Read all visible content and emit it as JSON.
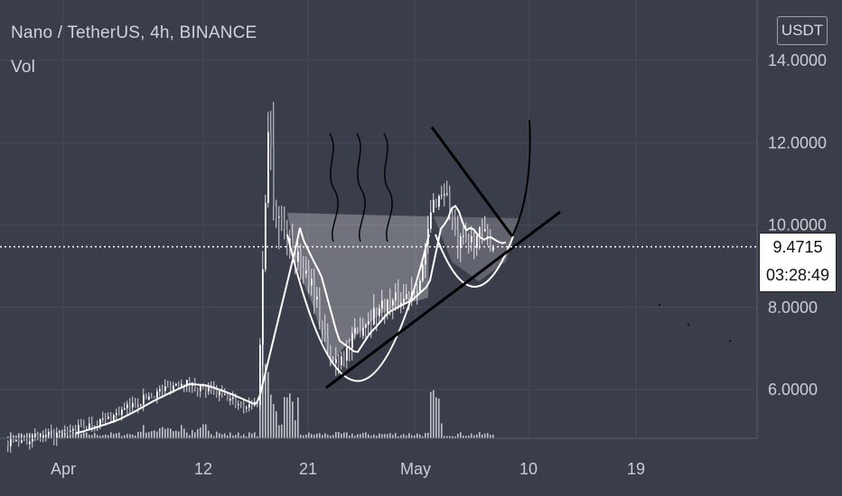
{
  "header": {
    "symbol": "Nano / TetherUS, 4h, BINANCE",
    "indicator": "Vol"
  },
  "currency": "USDT",
  "price_tag": {
    "price": "9.4715",
    "countdown": "03:28:49"
  },
  "colors": {
    "background": "#3a3e4a",
    "grid": "#474b57",
    "candle": "#ffffff",
    "drawing": "#000000",
    "axis_text": "#c9cdd6"
  },
  "chart_data": {
    "type": "candlestick",
    "symbol": "NANO/USDT",
    "timeframe": "4h",
    "exchange": "BINANCE",
    "x_ticks": [
      "Apr",
      "12",
      "21",
      "May",
      "10",
      "19"
    ],
    "y_ticks": [
      "6.0000",
      "8.0000",
      "10.0000",
      "12.0000",
      "14.0000"
    ],
    "ylim": [
      4.7,
      15.4
    ],
    "last_price": 9.4715,
    "grid": true,
    "drawings": [
      "cup and handle",
      "descending trendline",
      "ascending trendline",
      "upward curve"
    ],
    "moving_average": true
  }
}
